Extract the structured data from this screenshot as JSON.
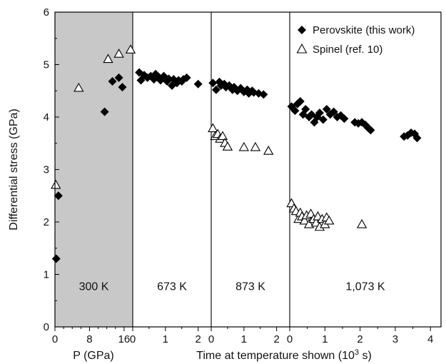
{
  "chart_data": {
    "type": "scatter",
    "ylabel": "Differential stress (GPa)",
    "ylim": [
      0,
      6
    ],
    "yticks": [
      0,
      1,
      2,
      3,
      4,
      5,
      6
    ],
    "shading": {
      "panel": "300 K",
      "color": "#c8c8c8"
    },
    "legend": {
      "placement": "top-right",
      "entries": [
        {
          "marker": "filled-diamond",
          "label": "Perovskite (this work)"
        },
        {
          "marker": "open-triangle",
          "label": "Spinel (ref. 10)"
        }
      ]
    },
    "xlabels": {
      "pressure": "P (GPa)",
      "time_prefix": "Time at temperature shown (10",
      "time_exp": "3",
      "time_suffix": " s)"
    },
    "panels": [
      {
        "label": "300 K",
        "x_quantity": "P (GPa)",
        "xlim": [
          0,
          18
        ],
        "xticks": [
          "0",
          "8",
          "16"
        ],
        "tick_values": [
          0,
          8,
          16
        ],
        "minor_ticks": [
          2,
          4,
          6,
          10,
          12,
          14
        ],
        "series": [
          {
            "name": "Perovskite (this work)",
            "marker": "diamond",
            "x": [
              0.3,
              0.8,
              11.5,
              13.3,
              14.8,
              15.6
            ],
            "y": [
              1.3,
              2.5,
              4.1,
              4.68,
              4.75,
              4.57
            ]
          },
          {
            "name": "Spinel (ref. 10)",
            "marker": "triangle",
            "x": [
              0.2,
              5.5,
              12.3,
              14.8,
              17.5
            ],
            "y": [
              2.7,
              4.55,
              5.1,
              5.2,
              5.28
            ]
          }
        ]
      },
      {
        "label": "673 K",
        "x_quantity": "Time at temperature shown (10^3 s)",
        "xlim": [
          0,
          2.4
        ],
        "xticks": [
          "0",
          "1",
          "2"
        ],
        "tick_values": [
          0,
          1,
          2
        ],
        "minor_ticks": [
          0.5,
          1.5
        ],
        "series": [
          {
            "name": "Perovskite (this work)",
            "marker": "diamond",
            "x": [
              0.2,
              0.25,
              0.35,
              0.45,
              0.55,
              0.65,
              0.7,
              0.8,
              0.85,
              0.95,
              1.05,
              1.1,
              1.2,
              1.25,
              1.35,
              1.4,
              1.5,
              1.55,
              1.65,
              2.0
            ],
            "y": [
              4.85,
              4.7,
              4.8,
              4.75,
              4.78,
              4.72,
              4.82,
              4.76,
              4.7,
              4.78,
              4.68,
              4.73,
              4.6,
              4.72,
              4.65,
              4.7,
              4.68,
              4.72,
              4.75,
              4.63
            ]
          }
        ]
      },
      {
        "label": "873 K",
        "x_quantity": "Time at temperature shown (10^3 s)",
        "xlim": [
          0,
          2.4
        ],
        "xticks": [
          "0",
          "1",
          "2"
        ],
        "tick_values": [
          0,
          1,
          2
        ],
        "minor_ticks": [
          0.5,
          1.5
        ],
        "series": [
          {
            "name": "Perovskite (this work)",
            "marker": "diamond",
            "x": [
              0.05,
              0.15,
              0.25,
              0.3,
              0.4,
              0.45,
              0.55,
              0.65,
              0.7,
              0.8,
              0.9,
              1.0,
              1.1,
              1.15,
              1.25,
              1.3,
              1.45,
              1.6
            ],
            "y": [
              4.65,
              4.52,
              4.67,
              4.6,
              4.63,
              4.57,
              4.6,
              4.52,
              4.57,
              4.5,
              4.55,
              4.48,
              4.52,
              4.45,
              4.5,
              4.47,
              4.45,
              4.43
            ]
          },
          {
            "name": "Spinel (ref. 10)",
            "marker": "triangle",
            "x": [
              0.05,
              0.12,
              0.2,
              0.27,
              0.35,
              0.42,
              0.5,
              1.0,
              1.35,
              1.75
            ],
            "y": [
              3.78,
              3.63,
              3.67,
              3.58,
              3.63,
              3.5,
              3.43,
              3.42,
              3.42,
              3.35
            ]
          }
        ]
      },
      {
        "label": "1,073 K",
        "x_quantity": "Time at temperature shown (10^3 s)",
        "xlim": [
          0,
          4.3
        ],
        "xticks": [
          "0",
          "1",
          "2",
          "3",
          "4"
        ],
        "tick_values": [
          0,
          1,
          2,
          3,
          4
        ],
        "minor_ticks": [
          0.5,
          1.5,
          2.5,
          3.5
        ],
        "series": [
          {
            "name": "Perovskite (this work)",
            "marker": "diamond",
            "x": [
              0.05,
              0.15,
              0.22,
              0.3,
              0.38,
              0.45,
              0.55,
              0.62,
              0.7,
              0.78,
              0.85,
              0.95,
              1.05,
              1.15,
              1.25,
              1.35,
              1.45,
              1.55,
              1.85,
              1.95,
              2.05,
              2.15,
              2.22,
              2.3,
              3.25,
              3.35,
              3.45,
              3.55,
              3.62
            ],
            "y": [
              4.2,
              4.12,
              4.25,
              4.3,
              4.05,
              4.15,
              4.0,
              4.05,
              3.9,
              4.0,
              4.08,
              3.95,
              4.15,
              4.05,
              4.1,
              4.0,
              4.03,
              3.97,
              3.9,
              3.88,
              3.9,
              3.85,
              3.8,
              3.75,
              3.63,
              3.65,
              3.7,
              3.68,
              3.6
            ]
          },
          {
            "name": "Spinel (ref. 10)",
            "marker": "triangle",
            "x": [
              0.05,
              0.12,
              0.18,
              0.25,
              0.3,
              0.35,
              0.42,
              0.48,
              0.55,
              0.6,
              0.68,
              0.75,
              0.8,
              0.85,
              0.92,
              1.0,
              1.05,
              1.12,
              2.05
            ],
            "y": [
              2.35,
              2.25,
              2.2,
              2.05,
              2.17,
              2.1,
              2.02,
              2.12,
              1.95,
              2.15,
              2.05,
              1.98,
              2.1,
              1.9,
              2.05,
              1.95,
              2.08,
              2.02,
              1.95
            ]
          }
        ]
      }
    ]
  }
}
